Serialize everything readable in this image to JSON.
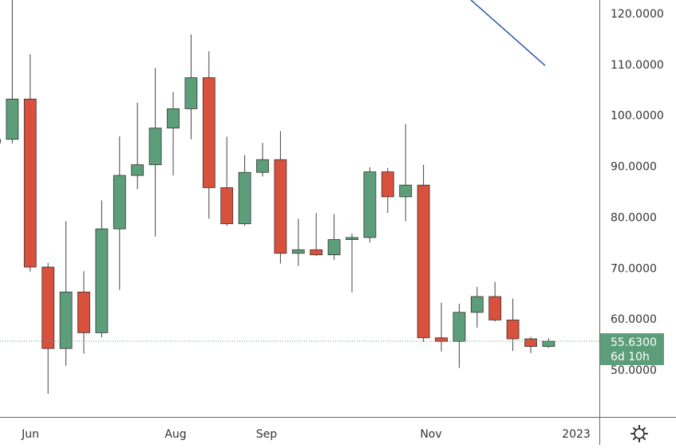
{
  "chart_data": {
    "type": "candlestick",
    "price_scale": {
      "ticks": [
        "120.0000",
        "110.0000",
        "100.0000",
        "90.0000",
        "80.0000",
        "70.0000",
        "60.0000",
        "50.0000"
      ],
      "tick_values": [
        120,
        110,
        100,
        90,
        80,
        70,
        60,
        50
      ],
      "range": [
        40.5,
        127.8
      ]
    },
    "time_scale": {
      "labels": [
        "Jun",
        "Aug",
        "Sep",
        "Nov",
        "2023"
      ]
    },
    "candles": [
      {
        "o": 94.6,
        "h": 98.0,
        "l": 93.5,
        "c": 95.3
      },
      {
        "o": 95.3,
        "h": 123.0,
        "l": 94.5,
        "c": 103.2
      },
      {
        "o": 103.2,
        "h": 112.0,
        "l": 69.3,
        "c": 70.2
      },
      {
        "o": 70.2,
        "h": 71.0,
        "l": 45.3,
        "c": 54.2
      },
      {
        "o": 54.2,
        "h": 79.2,
        "l": 50.8,
        "c": 65.3
      },
      {
        "o": 65.3,
        "h": 69.4,
        "l": 53.2,
        "c": 57.3
      },
      {
        "o": 57.3,
        "h": 83.3,
        "l": 56.4,
        "c": 77.7
      },
      {
        "o": 77.7,
        "h": 95.9,
        "l": 65.7,
        "c": 88.2
      },
      {
        "o": 88.2,
        "h": 102.5,
        "l": 85.5,
        "c": 90.3
      },
      {
        "o": 90.3,
        "h": 109.3,
        "l": 76.2,
        "c": 97.5
      },
      {
        "o": 97.5,
        "h": 104.6,
        "l": 88.2,
        "c": 101.3
      },
      {
        "o": 101.3,
        "h": 115.9,
        "l": 95.3,
        "c": 107.4
      },
      {
        "o": 107.4,
        "h": 112.6,
        "l": 79.7,
        "c": 85.8
      },
      {
        "o": 85.8,
        "h": 95.8,
        "l": 78.3,
        "c": 78.7
      },
      {
        "o": 78.7,
        "h": 92.2,
        "l": 78.3,
        "c": 88.8
      },
      {
        "o": 88.8,
        "h": 94.6,
        "l": 88.0,
        "c": 91.3
      },
      {
        "o": 91.3,
        "h": 96.9,
        "l": 70.9,
        "c": 72.9
      },
      {
        "o": 72.9,
        "h": 79.7,
        "l": 70.4,
        "c": 73.6
      },
      {
        "o": 73.6,
        "h": 80.8,
        "l": 72.4,
        "c": 72.6
      },
      {
        "o": 72.6,
        "h": 80.6,
        "l": 71.6,
        "c": 75.6
      },
      {
        "o": 75.6,
        "h": 76.8,
        "l": 65.2,
        "c": 76.0
      },
      {
        "o": 76.0,
        "h": 89.8,
        "l": 75.0,
        "c": 88.9
      },
      {
        "o": 88.9,
        "h": 89.7,
        "l": 80.8,
        "c": 84.0
      },
      {
        "o": 84.0,
        "h": 98.3,
        "l": 79.2,
        "c": 86.3
      },
      {
        "o": 86.3,
        "h": 90.3,
        "l": 55.5,
        "c": 56.3
      },
      {
        "o": 56.3,
        "h": 63.2,
        "l": 53.6,
        "c": 55.6
      },
      {
        "o": 55.6,
        "h": 63.0,
        "l": 50.4,
        "c": 61.3
      },
      {
        "o": 61.3,
        "h": 66.3,
        "l": 58.3,
        "c": 64.4
      },
      {
        "o": 64.4,
        "h": 67.3,
        "l": 59.5,
        "c": 59.8
      },
      {
        "o": 59.8,
        "h": 64.0,
        "l": 53.7,
        "c": 56.1
      },
      {
        "o": 56.1,
        "h": 56.5,
        "l": 53.3,
        "c": 54.6
      },
      {
        "o": 54.6,
        "h": 56.2,
        "l": 54.3,
        "c": 55.63
      }
    ],
    "trendline": {
      "from": {
        "candle": 25,
        "price": 127.8
      },
      "to": {
        "candle": 30.8,
        "price": 109.8
      }
    },
    "last_price": {
      "value": 55.63,
      "label": "55.6300",
      "countdown": "6d 10h"
    },
    "colors": {
      "up": "#5d9e7a",
      "down": "#d9503c",
      "wick": "#444444",
      "trendline": "#2b55a8",
      "last_price_bg": "#5d9e7a",
      "last_price_text": "#ffffff",
      "axis_text": "#333333",
      "axis_line": "#666666"
    },
    "grid": false
  },
  "toolbar": {
    "settings_icon": "gear-icon"
  }
}
